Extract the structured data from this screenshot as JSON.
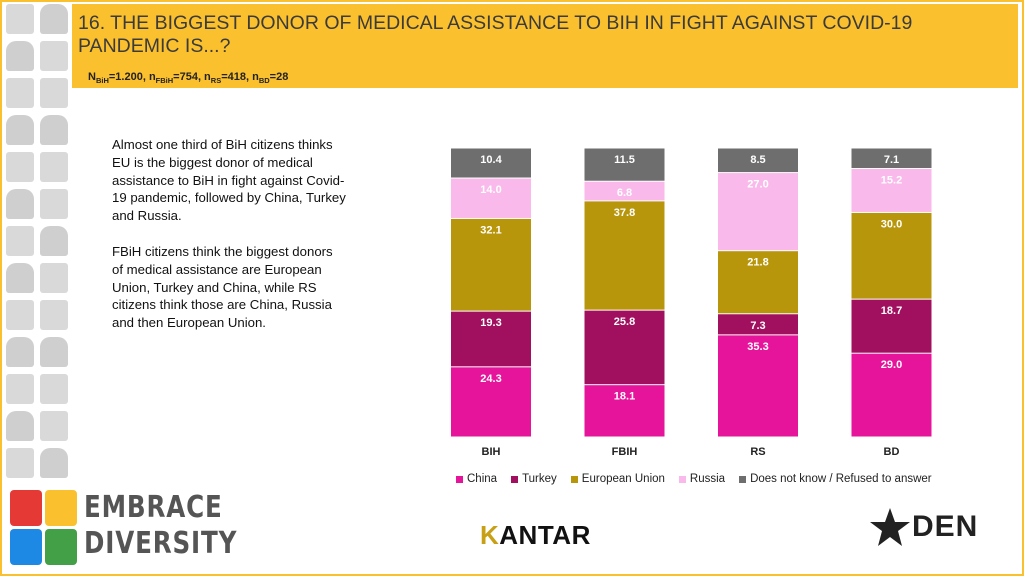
{
  "header": {
    "title": "16. THE BIGGEST DONOR OF MEDICAL ASSISTANCE TO BIH IN FIGHT AGAINST COVID-19 PANDEMIC IS...?",
    "sample": {
      "n_bih": "=1.200, n",
      "n_fbih": "=754, n",
      "n_rs": "=418, n",
      "n_bd": "=28",
      "sub_bih": "BiH",
      "sub_fbih": "FBiH",
      "sub_rs": "RS",
      "sub_bd": "BD",
      "prefix": "N"
    }
  },
  "description": {
    "paragraph1": "Almost one third of BiH citizens thinks EU is the biggest donor of medical assistance to BiH in fight against Covid-19 pandemic, followed by China, Turkey and Russia.",
    "paragraph2": "FBiH citizens think the biggest donors of medical assistance are European Union, Turkey and China, while RS citizens think those are China, Russia and then European Union."
  },
  "chart_data": {
    "type": "bar",
    "stacked": true,
    "normalized_percent": true,
    "categories": [
      "BIH",
      "FBIH",
      "RS",
      "BD"
    ],
    "series": [
      {
        "name": "China",
        "color": "#e6139b",
        "values": [
          24.3,
          18.1,
          35.3,
          29.0
        ]
      },
      {
        "name": "Turkey",
        "color": "#a0105e",
        "values": [
          19.3,
          25.8,
          7.3,
          18.7
        ]
      },
      {
        "name": "European Union",
        "color": "#b8960c",
        "values": [
          32.1,
          37.8,
          21.8,
          30.0
        ]
      },
      {
        "name": "Russia",
        "color": "#f9b9ea",
        "values": [
          14.0,
          6.8,
          27.0,
          15.2
        ]
      },
      {
        "name": "Does not know / Refused to answer",
        "color": "#6e6e6e",
        "values": [
          10.4,
          11.5,
          8.5,
          7.1
        ]
      }
    ],
    "labels": [
      [
        "24.3",
        "18.1",
        "35.3",
        "29.0"
      ],
      [
        "19.3",
        "25.8",
        "7.3",
        "18.7"
      ],
      [
        "32.1",
        "37.8",
        "21.8",
        "30.0"
      ],
      [
        "14.0",
        "6.8",
        "27.0",
        "15.2"
      ],
      [
        "10.4",
        "11.5",
        "8.5",
        "7.1"
      ]
    ],
    "legend_position": "bottom"
  },
  "logos": {
    "embrace_line1": "EMBRACE",
    "embrace_line2": "DIVERSITY",
    "kantar_k": "K",
    "kantar_rest": "ANTAR",
    "den": "DEN"
  }
}
